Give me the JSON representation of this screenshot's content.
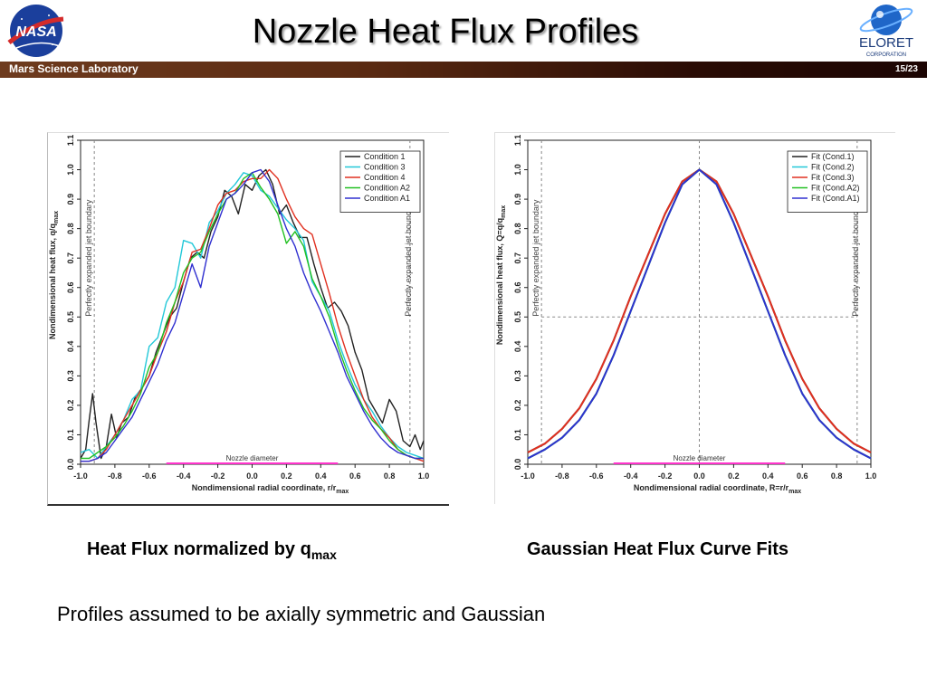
{
  "slide": {
    "title": "Nozzle Heat Flux Profiles",
    "banner_left": "Mars Science Laboratory",
    "banner_right": "15/23",
    "nasa_logo_text": "NASA",
    "eloret_logo_text": "ELORET",
    "eloret_logo_subtext": "CORPORATION",
    "caption_left_main": "Heat Flux normalized by q",
    "caption_left_sub": "max",
    "caption_right": "Gaussian Heat Flux Curve Fits",
    "body_text": "Profiles assumed to be axially symmetric and Gaussian",
    "colors": {
      "banner_start": "#6e3b1e",
      "banner_end": "#1c0503"
    }
  },
  "chart_data": [
    {
      "type": "line",
      "xlabel_main": "Nondimensional radial coordinate, r/r",
      "xlabel_sub": "max",
      "ylabel_main": "Nondimensional heat flux, q/q",
      "ylabel_sub": "max",
      "xlim": [
        -1.0,
        1.0
      ],
      "ylim": [
        0.0,
        1.1
      ],
      "x_ticks": [
        "-1.0",
        "-0.8",
        "-0.6",
        "-0.4",
        "-0.2",
        "0.0",
        "0.2",
        "0.4",
        "0.6",
        "0.8",
        "1.0"
      ],
      "y_ticks": [
        "0.0",
        "0.1",
        "0.2",
        "0.3",
        "0.4",
        "0.5",
        "0.6",
        "0.7",
        "0.8",
        "0.9",
        "1.0",
        "1.1"
      ],
      "legend_position": "top-right",
      "annotations": {
        "jet_boundary_label": "Perfectly expanded jet boundary",
        "jet_boundary_x": [
          -0.92,
          0.92
        ],
        "nozzle_label": "Nozzle diameter",
        "nozzle_range": [
          -0.5,
          0.5
        ]
      },
      "series": [
        {
          "name": "Condition 1",
          "color": "#222222",
          "x": [
            -1.0,
            -0.97,
            -0.95,
            -0.93,
            -0.91,
            -0.88,
            -0.85,
            -0.82,
            -0.79,
            -0.76,
            -0.72,
            -0.68,
            -0.64,
            -0.6,
            -0.56,
            -0.52,
            -0.48,
            -0.44,
            -0.4,
            -0.36,
            -0.32,
            -0.28,
            -0.24,
            -0.2,
            -0.16,
            -0.12,
            -0.08,
            -0.04,
            0.0,
            0.04,
            0.08,
            0.12,
            0.16,
            0.2,
            0.24,
            0.28,
            0.32,
            0.36,
            0.4,
            0.44,
            0.48,
            0.52,
            0.56,
            0.6,
            0.64,
            0.68,
            0.72,
            0.76,
            0.8,
            0.84,
            0.88,
            0.92,
            0.95,
            0.98,
            1.0
          ],
          "y": [
            0.02,
            0.05,
            0.15,
            0.24,
            0.14,
            0.02,
            0.06,
            0.17,
            0.09,
            0.14,
            0.16,
            0.23,
            0.26,
            0.3,
            0.38,
            0.44,
            0.5,
            0.53,
            0.62,
            0.7,
            0.72,
            0.7,
            0.79,
            0.84,
            0.93,
            0.91,
            0.85,
            0.95,
            0.93,
            0.98,
            1.0,
            0.95,
            0.85,
            0.88,
            0.82,
            0.77,
            0.77,
            0.68,
            0.6,
            0.53,
            0.55,
            0.52,
            0.47,
            0.38,
            0.32,
            0.22,
            0.18,
            0.14,
            0.22,
            0.18,
            0.08,
            0.06,
            0.1,
            0.05,
            0.08
          ]
        },
        {
          "name": "Condition 3",
          "color": "#22c8d8",
          "x": [
            -1.0,
            -0.95,
            -0.9,
            -0.85,
            -0.8,
            -0.75,
            -0.7,
            -0.65,
            -0.6,
            -0.55,
            -0.5,
            -0.45,
            -0.4,
            -0.35,
            -0.3,
            -0.25,
            -0.2,
            -0.15,
            -0.1,
            -0.05,
            0.0,
            0.05,
            0.1,
            0.15,
            0.2,
            0.25,
            0.3,
            0.35,
            0.4,
            0.45,
            0.5,
            0.55,
            0.6,
            0.65,
            0.7,
            0.75,
            0.8,
            0.85,
            0.9,
            0.95,
            1.0
          ],
          "y": [
            0.04,
            0.05,
            0.02,
            0.06,
            0.1,
            0.15,
            0.22,
            0.25,
            0.4,
            0.43,
            0.55,
            0.6,
            0.76,
            0.75,
            0.7,
            0.82,
            0.86,
            0.92,
            0.95,
            0.99,
            0.98,
            0.93,
            0.91,
            0.87,
            0.83,
            0.8,
            0.76,
            0.62,
            0.57,
            0.52,
            0.42,
            0.34,
            0.27,
            0.22,
            0.18,
            0.13,
            0.09,
            0.06,
            0.04,
            0.03,
            0.02
          ]
        },
        {
          "name": "Condition 4",
          "color": "#e03020",
          "x": [
            -1.0,
            -0.95,
            -0.9,
            -0.85,
            -0.8,
            -0.75,
            -0.7,
            -0.65,
            -0.6,
            -0.55,
            -0.5,
            -0.45,
            -0.4,
            -0.35,
            -0.3,
            -0.25,
            -0.2,
            -0.15,
            -0.1,
            -0.05,
            0.0,
            0.05,
            0.1,
            0.15,
            0.2,
            0.25,
            0.3,
            0.35,
            0.4,
            0.45,
            0.5,
            0.55,
            0.6,
            0.65,
            0.7,
            0.75,
            0.8,
            0.85,
            0.9,
            0.95,
            1.0
          ],
          "y": [
            0.01,
            0.01,
            0.02,
            0.05,
            0.1,
            0.15,
            0.2,
            0.25,
            0.3,
            0.38,
            0.45,
            0.55,
            0.62,
            0.72,
            0.73,
            0.8,
            0.88,
            0.92,
            0.93,
            0.96,
            0.97,
            0.97,
            1.0,
            0.97,
            0.9,
            0.84,
            0.8,
            0.78,
            0.68,
            0.58,
            0.47,
            0.38,
            0.3,
            0.22,
            0.16,
            0.12,
            0.09,
            0.05,
            0.03,
            0.02,
            0.01
          ]
        },
        {
          "name": "Condition A2",
          "color": "#22c022",
          "x": [
            -1.0,
            -0.95,
            -0.9,
            -0.85,
            -0.8,
            -0.75,
            -0.7,
            -0.65,
            -0.6,
            -0.55,
            -0.5,
            -0.45,
            -0.4,
            -0.35,
            -0.3,
            -0.25,
            -0.2,
            -0.15,
            -0.1,
            -0.05,
            0.0,
            0.05,
            0.1,
            0.15,
            0.2,
            0.25,
            0.3,
            0.35,
            0.4,
            0.45,
            0.5,
            0.55,
            0.6,
            0.65,
            0.7,
            0.75,
            0.8,
            0.85,
            0.9,
            0.95,
            1.0
          ],
          "y": [
            0.02,
            0.02,
            0.04,
            0.06,
            0.09,
            0.13,
            0.18,
            0.24,
            0.33,
            0.38,
            0.48,
            0.55,
            0.65,
            0.7,
            0.72,
            0.79,
            0.85,
            0.9,
            0.92,
            0.97,
            0.99,
            0.94,
            0.9,
            0.85,
            0.75,
            0.79,
            0.74,
            0.63,
            0.57,
            0.5,
            0.4,
            0.32,
            0.25,
            0.19,
            0.15,
            0.12,
            0.08,
            0.05,
            0.03,
            0.02,
            0.02
          ]
        },
        {
          "name": "Condition A1",
          "color": "#3030d0",
          "x": [
            -1.0,
            -0.95,
            -0.9,
            -0.85,
            -0.8,
            -0.75,
            -0.7,
            -0.65,
            -0.6,
            -0.55,
            -0.5,
            -0.45,
            -0.4,
            -0.35,
            -0.3,
            -0.25,
            -0.2,
            -0.15,
            -0.1,
            -0.05,
            0.0,
            0.05,
            0.1,
            0.15,
            0.2,
            0.25,
            0.3,
            0.35,
            0.4,
            0.45,
            0.5,
            0.55,
            0.6,
            0.65,
            0.7,
            0.75,
            0.8,
            0.85,
            0.9,
            0.95,
            1.0
          ],
          "y": [
            0.01,
            0.01,
            0.02,
            0.04,
            0.08,
            0.12,
            0.16,
            0.22,
            0.28,
            0.34,
            0.42,
            0.48,
            0.58,
            0.68,
            0.6,
            0.74,
            0.82,
            0.9,
            0.92,
            0.95,
            0.99,
            1.0,
            0.96,
            0.88,
            0.8,
            0.74,
            0.65,
            0.58,
            0.52,
            0.45,
            0.38,
            0.3,
            0.24,
            0.18,
            0.13,
            0.09,
            0.06,
            0.04,
            0.03,
            0.02,
            0.02
          ]
        }
      ]
    },
    {
      "type": "line",
      "xlabel_main": "Nondimensional radial coordinate, R=r/r",
      "xlabel_sub": "max",
      "ylabel_main": "Nondimensional heat flux, Q=q/q",
      "ylabel_sub": "max",
      "xlim": [
        -1.0,
        1.0
      ],
      "ylim": [
        0.0,
        1.1
      ],
      "x_ticks": [
        "-1.0",
        "-0.8",
        "-0.6",
        "-0.4",
        "-0.2",
        "0.0",
        "0.2",
        "0.4",
        "0.6",
        "0.8",
        "1.0"
      ],
      "y_ticks": [
        "0.0",
        "0.1",
        "0.2",
        "0.3",
        "0.4",
        "0.5",
        "0.6",
        "0.7",
        "0.8",
        "0.9",
        "1.0",
        "1.1"
      ],
      "legend_position": "top-right",
      "annotations": {
        "jet_boundary_label": "Perfectly expanded jet boundary",
        "jet_boundary_x": [
          -0.92,
          0.92
        ],
        "nozzle_label": "Nozzle diameter",
        "nozzle_range": [
          -0.5,
          0.5
        ],
        "reference_y": 0.5,
        "reference_x": 0.0
      },
      "series": [
        {
          "name": "Fit (Cond.1)",
          "color": "#222222",
          "x": [
            -1.0,
            -0.9,
            -0.8,
            -0.7,
            -0.6,
            -0.5,
            -0.4,
            -0.3,
            -0.2,
            -0.1,
            0.0,
            0.1,
            0.2,
            0.3,
            0.4,
            0.5,
            0.6,
            0.7,
            0.8,
            0.9,
            1.0
          ],
          "y": [
            0.04,
            0.07,
            0.12,
            0.19,
            0.29,
            0.42,
            0.57,
            0.71,
            0.85,
            0.96,
            1.0,
            0.96,
            0.85,
            0.71,
            0.57,
            0.42,
            0.29,
            0.19,
            0.12,
            0.07,
            0.04
          ]
        },
        {
          "name": "Fit (Cond.2)",
          "color": "#22c8d8",
          "x": [
            -1.0,
            -0.9,
            -0.8,
            -0.7,
            -0.6,
            -0.5,
            -0.4,
            -0.3,
            -0.2,
            -0.1,
            0.0,
            0.1,
            0.2,
            0.3,
            0.4,
            0.5,
            0.6,
            0.7,
            0.8,
            0.9,
            1.0
          ],
          "y": [
            0.02,
            0.05,
            0.09,
            0.15,
            0.24,
            0.37,
            0.52,
            0.67,
            0.82,
            0.95,
            1.0,
            0.95,
            0.82,
            0.67,
            0.52,
            0.37,
            0.24,
            0.15,
            0.09,
            0.05,
            0.02
          ]
        },
        {
          "name": "Fit (Cond.3)",
          "color": "#e03020",
          "x": [
            -1.0,
            -0.9,
            -0.8,
            -0.7,
            -0.6,
            -0.5,
            -0.4,
            -0.3,
            -0.2,
            -0.1,
            0.0,
            0.1,
            0.2,
            0.3,
            0.4,
            0.5,
            0.6,
            0.7,
            0.8,
            0.9,
            1.0
          ],
          "y": [
            0.04,
            0.07,
            0.12,
            0.19,
            0.29,
            0.42,
            0.57,
            0.71,
            0.85,
            0.96,
            1.0,
            0.96,
            0.85,
            0.71,
            0.57,
            0.42,
            0.29,
            0.19,
            0.12,
            0.07,
            0.04
          ]
        },
        {
          "name": "Fit (Cond.A2)",
          "color": "#22c022",
          "x": [
            -1.0,
            -0.9,
            -0.8,
            -0.7,
            -0.6,
            -0.5,
            -0.4,
            -0.3,
            -0.2,
            -0.1,
            0.0,
            0.1,
            0.2,
            0.3,
            0.4,
            0.5,
            0.6,
            0.7,
            0.8,
            0.9,
            1.0
          ],
          "y": [
            0.02,
            0.05,
            0.09,
            0.15,
            0.24,
            0.37,
            0.52,
            0.67,
            0.82,
            0.95,
            1.0,
            0.95,
            0.82,
            0.67,
            0.52,
            0.37,
            0.24,
            0.15,
            0.09,
            0.05,
            0.02
          ]
        },
        {
          "name": "Fit (Cond.A1)",
          "color": "#3030d0",
          "x": [
            -1.0,
            -0.9,
            -0.8,
            -0.7,
            -0.6,
            -0.5,
            -0.4,
            -0.3,
            -0.2,
            -0.1,
            0.0,
            0.1,
            0.2,
            0.3,
            0.4,
            0.5,
            0.6,
            0.7,
            0.8,
            0.9,
            1.0
          ],
          "y": [
            0.02,
            0.05,
            0.09,
            0.15,
            0.24,
            0.37,
            0.52,
            0.67,
            0.82,
            0.95,
            1.0,
            0.95,
            0.82,
            0.67,
            0.52,
            0.37,
            0.24,
            0.15,
            0.09,
            0.05,
            0.02
          ]
        }
      ]
    }
  ]
}
